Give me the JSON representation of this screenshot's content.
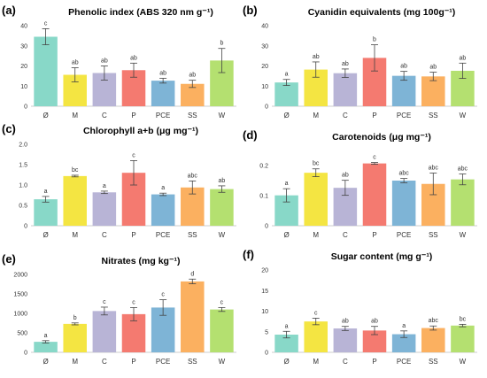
{
  "category_colors": [
    "#88d8c8",
    "#f4e542",
    "#b8b4d6",
    "#f47a70",
    "#7eb4d6",
    "#fbb060",
    "#b4e070"
  ],
  "chart_data": [
    {
      "type": "bar",
      "letter": "(a)",
      "title": "Phenolic index (ABS 320 nm g⁻¹)",
      "categories": [
        "Ø",
        "M",
        "C",
        "P",
        "PCE",
        "SS",
        "W"
      ],
      "values": [
        34.5,
        15.6,
        16.5,
        17.9,
        12.7,
        11.1,
        22.7
      ],
      "errors": [
        4,
        3.5,
        3.5,
        3.5,
        1.2,
        1.8,
        6
      ],
      "letters": [
        "c",
        "ab",
        "ab",
        "ab",
        "ab",
        "ab",
        "b"
      ],
      "ylim": [
        0,
        40
      ],
      "yticks": [
        "0",
        "10",
        "20",
        "30",
        "40"
      ],
      "tick_values": [
        0,
        10,
        20,
        30,
        40
      ]
    },
    {
      "type": "bar",
      "letter": "(b)",
      "title": "Cyanidin equivalents (mg 100g⁻¹)",
      "categories": [
        "Ø",
        "M",
        "C",
        "P",
        "PCE",
        "SS",
        "W"
      ],
      "values": [
        11.8,
        18.2,
        16.4,
        24.0,
        15.1,
        14.8,
        17.6
      ],
      "errors": [
        1.5,
        3.8,
        2.1,
        6.5,
        2.2,
        2.1,
        3.8
      ],
      "letters": [
        "a",
        "ab",
        "ab",
        "b",
        "ab",
        "ab",
        "ab"
      ],
      "ylim": [
        0,
        40
      ],
      "yticks": [
        "0",
        "10",
        "20",
        "30",
        "40"
      ],
      "tick_values": [
        0,
        10,
        20,
        30,
        40
      ]
    },
    {
      "type": "bar",
      "letter": "(c)",
      "title": "Chlorophyll a+b (μg mg⁻¹)",
      "categories": [
        "Ø",
        "M",
        "C",
        "P",
        "PCE",
        "SS",
        "W"
      ],
      "values": [
        0.65,
        1.22,
        0.82,
        1.3,
        0.77,
        0.94,
        0.9
      ],
      "errors": [
        0.07,
        0.02,
        0.03,
        0.3,
        0.03,
        0.16,
        0.08
      ],
      "letters": [
        "a",
        "bc",
        "a",
        "c",
        "a",
        "abc",
        "ab"
      ],
      "ylim": [
        0,
        2.0
      ],
      "yticks": [
        "0",
        "0.5",
        "1.0",
        "1.5",
        "2.0"
      ],
      "tick_values": [
        0,
        0.5,
        1.0,
        1.5,
        2.0
      ]
    },
    {
      "type": "bar",
      "letter": "(d)",
      "title": "Carotenoids (μg mg⁻¹)",
      "categories": [
        "Ø",
        "M",
        "C",
        "P",
        "PCE",
        "SS",
        "W"
      ],
      "values": [
        0.101,
        0.176,
        0.126,
        0.207,
        0.15,
        0.139,
        0.154
      ],
      "errors": [
        0.022,
        0.013,
        0.025,
        0.003,
        0.007,
        0.036,
        0.018
      ],
      "letters": [
        "a",
        "bc",
        "ab",
        "c",
        "abc",
        "abc",
        "abc"
      ],
      "ylim": [
        0,
        0.25
      ],
      "yticks": [
        "0",
        "0.1",
        "0.2"
      ],
      "tick_values": [
        0,
        0.1,
        0.2
      ]
    },
    {
      "type": "bar",
      "letter": "(e)",
      "title": "Nitrates (mg kg⁻¹)",
      "categories": [
        "Ø",
        "M",
        "C",
        "P",
        "PCE",
        "SS",
        "W"
      ],
      "values": [
        270,
        730,
        1060,
        980,
        1150,
        1820,
        1100
      ],
      "errors": [
        30,
        25,
        100,
        170,
        200,
        60,
        50
      ],
      "letters": [
        "a",
        "b",
        "c",
        "c",
        "c",
        "d",
        "c"
      ],
      "ylim": [
        0,
        2000
      ],
      "yticks": [
        "0",
        "500",
        "1000",
        "1500",
        "2000"
      ],
      "tick_values": [
        0,
        500,
        1000,
        1500,
        2000
      ]
    },
    {
      "type": "bar",
      "letter": "(f)",
      "title": "Sugar content (mg g⁻¹)",
      "categories": [
        "Ø",
        "M",
        "C",
        "P",
        "PCE",
        "SS",
        "W"
      ],
      "values": [
        4.3,
        7.5,
        5.8,
        5.3,
        4.4,
        5.9,
        6.5
      ],
      "errors": [
        0.8,
        0.8,
        0.5,
        1.0,
        0.8,
        0.5,
        0.3
      ],
      "letters": [
        "a",
        "c",
        "ab",
        "ab",
        "a",
        "abc",
        "bc"
      ],
      "ylim": [
        0,
        20
      ],
      "yticks": [
        "0",
        "5",
        "10",
        "15",
        "20"
      ],
      "tick_values": [
        0,
        5,
        10,
        15,
        20
      ]
    }
  ]
}
